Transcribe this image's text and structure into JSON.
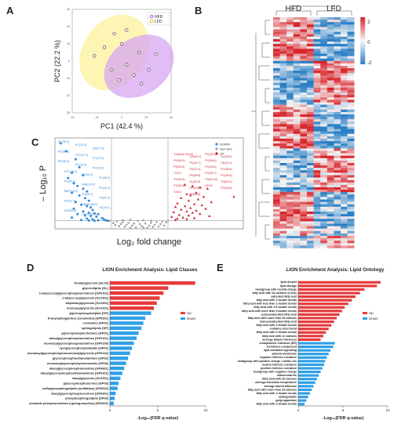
{
  "panel_letters": {
    "a": "A",
    "b": "B",
    "c": "C",
    "d": "D",
    "e": "E"
  },
  "chart_data": [
    {
      "panel": "A",
      "type": "scatter",
      "xlabel": "PC1 (42.4 %)",
      "ylabel": "PC2 (22.2 %)",
      "xlim": [
        -40,
        40
      ],
      "ylim": [
        -30,
        30
      ],
      "xticks": [
        "-40",
        "-20",
        "0",
        "20",
        "40"
      ],
      "yticks": [
        "-30",
        "-20",
        "-10",
        "0",
        "10",
        "20",
        "30"
      ],
      "legend": [
        {
          "label": "HFD",
          "color": "#c040d8"
        },
        {
          "label": "LFD",
          "color": "#e8c800"
        }
      ],
      "series": [
        {
          "name": "HFD",
          "color": "#c040d8",
          "ellipse_fill": "#d7a6f2",
          "points": [
            [
              4,
              -2
            ],
            [
              10,
              -8
            ],
            [
              14,
              5
            ],
            [
              16,
              -13
            ],
            [
              22,
              -5
            ],
            [
              28,
              4
            ]
          ]
        },
        {
          "name": "LFD",
          "color": "#e8c800",
          "ellipse_fill": "#fbf2a0",
          "points": [
            [
              -22,
              3
            ],
            [
              -14,
              8
            ],
            [
              -8,
              -5
            ],
            [
              -6,
              16
            ],
            [
              -2,
              -11
            ],
            [
              0,
              10
            ],
            [
              4,
              18
            ]
          ]
        }
      ]
    },
    {
      "panel": "B",
      "type": "heatmap",
      "column_groups": [
        "HFD",
        "LFD"
      ],
      "colorbar_ticks": [
        "2",
        "0",
        "-2"
      ],
      "low_color": "#2a7fc4",
      "mid_color": "#f6f6f6",
      "high_color": "#d8262c"
    },
    {
      "panel": "C",
      "type": "scatter",
      "xlabel": "Log₂ fold change",
      "ylabel": "– Log₁₀ P",
      "legend": [
        {
          "label": "DOWN",
          "color": "#2f88d8"
        },
        {
          "label": "Non-SIG",
          "color": "#a0a0a0"
        },
        {
          "label": "UP",
          "color": "#d0202a"
        }
      ],
      "down_labels": [
        "PC(38:1)",
        "PC(32:2)",
        "SM(17:0)",
        "PE(36:1)",
        "LPC(22:1)",
        "PC(32:2)",
        "PE(38:4)",
        "PC(36:5)",
        "PC(36:4)",
        "LPC(18:2)",
        "PC(36:4)",
        "PC(38:2)",
        "PE(34:1)",
        "NAE(19:0)",
        "PC(36:1)",
        "BMP(16:0)",
        "TG(48:1)",
        "TG(52:3)",
        "PC(31:1)",
        "HBMP(48:0)",
        "CE(16:1)",
        "DG(36:4)",
        "OxTG(56:4)"
      ],
      "up_labels": [
        "Cer(d18:1/20:0)",
        "Cer(20:1)",
        "PC(33:1)",
        "SL(35:0)",
        "PC(40:9)",
        "PC(40:7)",
        "PC(38:6)",
        "CE(20:1)",
        "PE(39:6)",
        "PC(37:4)",
        "PC(40:6)",
        "PC(38:6)",
        "C10:3",
        "PE(38:5)",
        "PC(38:7)",
        "PC(40:8)",
        "PC(40:9)",
        "SL(40:9)",
        "TG(40:10)",
        "TG(51:2)",
        "PC(34:6)",
        "LPE(18:0)",
        "C18:2",
        "PC(38:5)",
        "C18:4",
        "PE(38:6)"
      ],
      "down_points": [
        [
          -4.2,
          3.2
        ],
        [
          -3.9,
          2.9
        ],
        [
          -3.4,
          2.6
        ],
        [
          -3.2,
          2.3
        ],
        [
          -3.6,
          2.1
        ],
        [
          -3.0,
          2.0
        ],
        [
          -3.8,
          1.9
        ],
        [
          -3.5,
          1.7
        ],
        [
          -3.3,
          1.6
        ],
        [
          -3.0,
          1.5
        ],
        [
          -2.8,
          1.4
        ],
        [
          -3.6,
          1.35
        ],
        [
          -3.2,
          1.25
        ],
        [
          -2.9,
          1.15
        ],
        [
          -2.7,
          1.05
        ],
        [
          -3.4,
          1.0
        ],
        [
          -3.1,
          0.9
        ],
        [
          -2.8,
          0.85
        ],
        [
          -2.6,
          0.8
        ],
        [
          -3.5,
          0.75
        ],
        [
          -2.5,
          0.7
        ],
        [
          -3.0,
          0.65
        ],
        [
          -2.7,
          0.6
        ],
        [
          -2.4,
          0.58
        ],
        [
          -3.3,
          0.55
        ],
        [
          -2.2,
          0.55
        ],
        [
          -2.9,
          0.5
        ],
        [
          -2.6,
          0.48
        ],
        [
          -2.3,
          0.45
        ],
        [
          -3.6,
          0.42
        ],
        [
          -2.0,
          0.4
        ],
        [
          -2.8,
          0.38
        ],
        [
          -2.5,
          0.36
        ],
        [
          -1.9,
          0.35
        ],
        [
          -3.1,
          0.33
        ],
        [
          -2.2,
          0.32
        ],
        [
          -1.8,
          0.32
        ],
        [
          -2.7,
          0.31
        ],
        [
          -2.4,
          0.3
        ],
        [
          -1.7,
          0.3
        ]
      ],
      "up_points": [
        [
          2.4,
          1.65
        ],
        [
          2.8,
          1.6
        ],
        [
          3.2,
          1.55
        ],
        [
          3.6,
          1.5
        ],
        [
          3.0,
          1.35
        ],
        [
          2.5,
          1.3
        ],
        [
          2.7,
          1.25
        ],
        [
          3.4,
          1.2
        ],
        [
          2.2,
          1.15
        ],
        [
          3.1,
          1.1
        ],
        [
          2.6,
          1.05
        ],
        [
          3.8,
          1.0
        ],
        [
          2.0,
          0.95
        ],
        [
          2.9,
          0.92
        ],
        [
          3.3,
          0.88
        ],
        [
          2.4,
          0.85
        ],
        [
          1.9,
          0.82
        ],
        [
          2.7,
          0.78
        ],
        [
          3.5,
          0.75
        ],
        [
          2.2,
          0.72
        ],
        [
          3.0,
          0.68
        ],
        [
          2.5,
          0.65
        ],
        [
          1.8,
          0.62
        ],
        [
          2.8,
          0.6
        ],
        [
          3.2,
          0.56
        ],
        [
          2.1,
          0.52
        ],
        [
          2.6,
          0.5
        ],
        [
          3.7,
          0.48
        ],
        [
          1.7,
          0.45
        ],
        [
          2.3,
          0.42
        ],
        [
          2.9,
          0.4
        ],
        [
          2.0,
          0.38
        ],
        [
          5.0,
          1.2
        ],
        [
          2.5,
          0.36
        ],
        [
          1.9,
          0.34
        ]
      ],
      "nonsig_points": [
        [
          -1.2,
          0.28
        ],
        [
          -0.9,
          0.25
        ],
        [
          -0.6,
          0.22
        ],
        [
          -0.3,
          0.2
        ],
        [
          0.0,
          0.18
        ],
        [
          0.3,
          0.2
        ],
        [
          0.6,
          0.22
        ],
        [
          0.9,
          0.25
        ],
        [
          1.2,
          0.27
        ],
        [
          1.4,
          0.24
        ],
        [
          -1.4,
          0.22
        ],
        [
          -1.0,
          0.18
        ],
        [
          -0.7,
          0.15
        ],
        [
          -0.4,
          0.12
        ],
        [
          0.1,
          0.1
        ],
        [
          0.5,
          0.12
        ],
        [
          0.8,
          0.15
        ],
        [
          1.1,
          0.18
        ],
        [
          -0.8,
          0.08
        ],
        [
          -0.2,
          0.06
        ],
        [
          0.2,
          0.05
        ],
        [
          0.7,
          0.07
        ],
        [
          -1.1,
          0.1
        ],
        [
          1.0,
          0.09
        ],
        [
          -0.5,
          0.04
        ],
        [
          0.4,
          0.03
        ],
        [
          1.3,
          0.12
        ],
        [
          -1.3,
          0.14
        ],
        [
          -0.1,
          0.3
        ],
        [
          0.2,
          0.32
        ],
        [
          -0.5,
          0.34
        ],
        [
          0.6,
          0.3
        ],
        [
          -0.9,
          0.33
        ],
        [
          1.5,
          0.3
        ],
        [
          -1.6,
          0.3
        ]
      ]
    },
    {
      "panel": "D",
      "type": "bar",
      "title": "LION Enrichment Analysis: Lipid Classes",
      "xlabel": "-Log₁₀(FDR q-value)",
      "xlim": [
        0,
        10
      ],
      "xticks": [
        "0",
        "5",
        "10"
      ],
      "legend": [
        {
          "label": "Up",
          "color": "#e63a3a"
        },
        {
          "label": "Down",
          "color": "#2ea0e6"
        }
      ],
      "categories": [
        "triradylglycerols [GL03]",
        "glycerolipids [GL]",
        "1-alkyl,2-acylglycerophosphocholines [GP0102]",
        "1-alkyl,2-acylglycerols [GL0302]",
        "alkyldiacylglycerols [GL0302]",
        "monoacylglycerols [GL0101]",
        "glycerophospholipids [GP]",
        "N-acylsphinganines (ceramides) [SP0201]",
        "ceramides [SP02]",
        "sphingolipids [SP]",
        "glycerophosphocholines [GP01]",
        "diacylglycerophosphocholines [GP0101]",
        "monoacylglycerophosphocholines [GP0105]",
        "lysoglycerophospholipids [GP01]",
        "monoacylglycerophosphomonoradylglycerols [GP0410]",
        "glycerophosphoethanolamines [GP02]",
        "monoacylglycerophosphoinositols [GP06]",
        "diacylglycerophosphoinositols [GP0601]",
        "diacylglycerophosphoethanolamines [GP0201]",
        "diacylglycerols [GL0201]",
        "glycerophosphoserines [GP03]",
        "sulfoglycosphingolipids (sulfatides) [SP0602]",
        "diacylglycerophosphoserines [GP0301]",
        "phosphosphingolipids [SP03]",
        "ceramide phosphocholines (sphingomyelins) [SP0301]"
      ],
      "values": [
        8.9,
        6.1,
        5.6,
        5.2,
        4.9,
        4.6,
        4.3,
        3.7,
        3.5,
        3.3,
        3.0,
        2.8,
        2.5,
        2.3,
        2.1,
        1.9,
        1.7,
        1.5,
        1.3,
        1.1,
        0.9,
        0.8,
        0.6,
        0.5,
        0.4
      ],
      "direction": [
        "up",
        "up",
        "up",
        "up",
        "up",
        "up",
        "down",
        "down",
        "down",
        "down",
        "down",
        "down",
        "down",
        "down",
        "down",
        "down",
        "down",
        "down",
        "down",
        "down",
        "down",
        "down",
        "down",
        "down",
        "down"
      ]
    },
    {
      "panel": "E",
      "type": "bar",
      "title": "LION Enrichment Analysis: Lipid Ontology",
      "xlabel": "-Log₁₀(FDR q-value)",
      "xlim": [
        0,
        10
      ],
      "xticks": [
        "0",
        "5",
        "10"
      ],
      "legend": [
        {
          "label": "Up",
          "color": "#e63a3a"
        },
        {
          "label": "Down",
          "color": "#2ea0e6"
        }
      ],
      "categories": [
        "lipid droplet",
        "lipid storage",
        "headgroup with neutral charge",
        "fatty acid with 18 carbons or less",
        "saturated fatty acid",
        "fatty acid with 3 double bonds",
        "fatty acid with less than 2 double bonds",
        "fatty acid with 3-5 double bonds",
        "fatty acid with more than 3 double bonds",
        "polyunsaturated fatty acid",
        "fatty acid with more than 18 carbons",
        "monounsaturated fatty acid",
        "fatty acid with 4 double bonds",
        "contains ether bond",
        "fatty acid with 6 double bonds",
        "fatty acid with 12 carbons",
        "average bilayer thickness",
        "endoplasmic reticulum (ER)",
        "membrane component",
        "lipid-mediated signalling",
        "plasma membrane",
        "negative intrinsic curvature",
        "headgroup with positive charge / zwitter-ion",
        "neutral intrinsic curvature",
        "positive intrinsic curvature",
        "headgroup with negative charge",
        "mitochondrion",
        "fatty acid with 20 carbons",
        "average transition temperature",
        "average lateral diffusion",
        "fatty acid with more than 24 carbons",
        "fatty acid with 2 double bonds",
        "sphingolipids",
        "golgi apparatus",
        "fatty acid with 3 double bonds"
      ],
      "values": [
        9.2,
        8.8,
        7.4,
        6.9,
        6.4,
        6.0,
        5.6,
        5.2,
        4.9,
        4.6,
        4.3,
        4.0,
        3.7,
        3.4,
        3.1,
        2.8,
        2.5,
        4.1,
        3.9,
        3.6,
        3.4,
        3.2,
        3.0,
        2.9,
        2.7,
        2.5,
        2.3,
        2.1,
        1.9,
        1.7,
        1.5,
        1.3,
        1.1,
        0.9,
        0.7
      ],
      "direction": [
        "up",
        "up",
        "up",
        "up",
        "up",
        "up",
        "up",
        "up",
        "up",
        "up",
        "up",
        "up",
        "up",
        "up",
        "up",
        "up",
        "up",
        "down",
        "down",
        "down",
        "down",
        "down",
        "down",
        "down",
        "down",
        "down",
        "down",
        "down",
        "down",
        "down",
        "down",
        "down",
        "down",
        "down",
        "down"
      ]
    }
  ]
}
